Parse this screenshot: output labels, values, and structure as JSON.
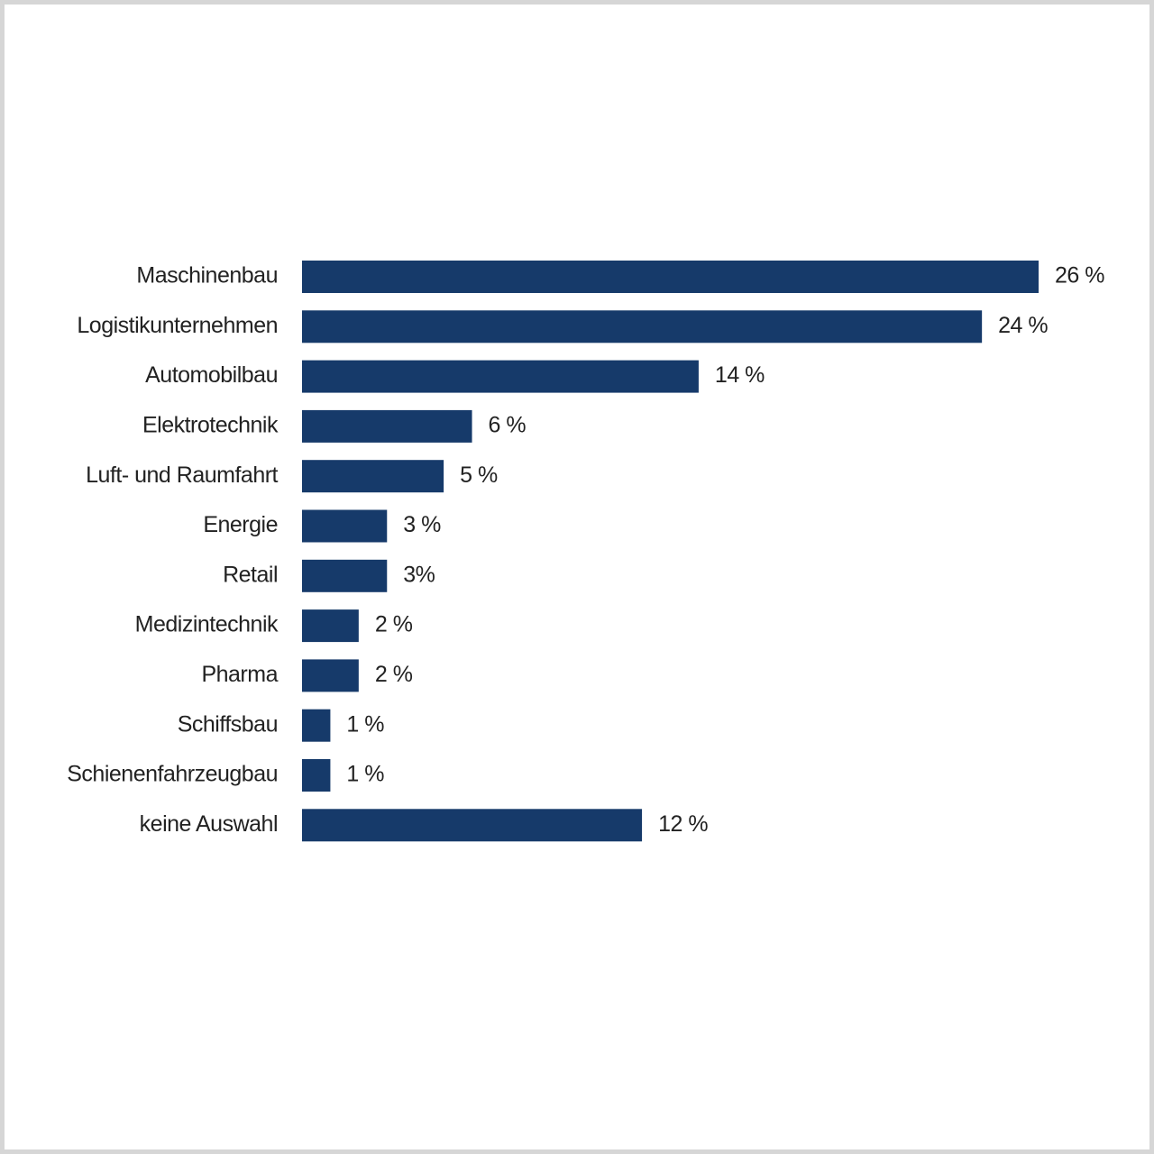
{
  "chart_data": {
    "type": "barh",
    "categories": [
      "Maschinenbau",
      "Logistikunternehmen",
      "Automobilbau",
      "Elektrotechnik",
      "Luft- und Raumfahrt",
      "Energie",
      "Retail",
      "Medizintechnik",
      "Pharma",
      "Schiffsbau",
      "Schienenfahrzeugbau",
      "keine Auswahl"
    ],
    "values": [
      26,
      24,
      14,
      6,
      5,
      3,
      3,
      2,
      2,
      1,
      1,
      12
    ],
    "value_labels": [
      "26 %",
      "24 %",
      "14 %",
      "6 %",
      "5 %",
      "3 %",
      "3%",
      "2 %",
      "2 %",
      "1 %",
      "1 %",
      "12 %"
    ],
    "color": "#163a6a"
  }
}
